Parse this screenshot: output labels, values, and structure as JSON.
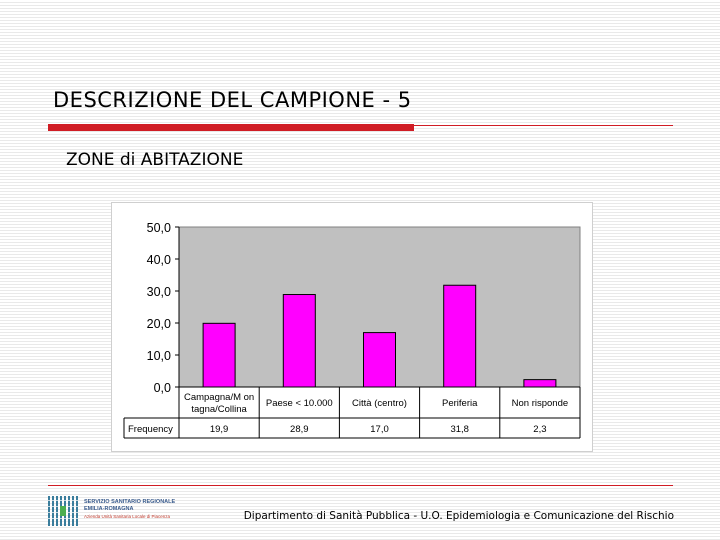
{
  "slide": {
    "title": "DESCRIZIONE DEL CAMPIONE - 5",
    "subtitle": "ZONE di ABITAZIONE"
  },
  "footer": {
    "logo_line1": "SERVIZIO SANITARIO REGIONALE",
    "logo_line2": "EMILIA-ROMAGNA",
    "logo_line3": "Azienda Unità Sanitaria Locale di Piacenza",
    "text": "Dipartimento di Sanità Pubblica - U.O. Epidemiologia e Comunicazione del Rischio"
  },
  "colors": {
    "bar": "#ff00ff",
    "plot_bg": "#c0c0c0",
    "accent": "#d01c24"
  },
  "chart_data": {
    "type": "bar",
    "categories": [
      "Campagna/Montagna/Collina",
      "Paese < 10.000",
      "Città (centro)",
      "Periferia",
      "Non risponde"
    ],
    "category_lines": [
      [
        "Campagna/M on",
        "tagna/Collina"
      ],
      [
        "Paese < 10.000"
      ],
      [
        "Città (centro)"
      ],
      [
        "Periferia"
      ],
      [
        "Non risponde"
      ]
    ],
    "values": [
      19.9,
      28.9,
      17.0,
      31.8,
      2.3
    ],
    "value_labels": [
      "19,9",
      "28,9",
      "17,0",
      "31,8",
      "2,3"
    ],
    "series": [
      {
        "name": "Frequency",
        "values": [
          19.9,
          28.9,
          17.0,
          31.8,
          2.3
        ]
      }
    ],
    "yticks": [
      0,
      10,
      20,
      30,
      40,
      50
    ],
    "ytick_labels": [
      "0,0",
      "10,0",
      "20,0",
      "30,0",
      "40,0",
      "50,0"
    ],
    "ylim": [
      0,
      50
    ],
    "grid": false,
    "legend": "data-table",
    "title": "",
    "xlabel": "",
    "ylabel": ""
  }
}
